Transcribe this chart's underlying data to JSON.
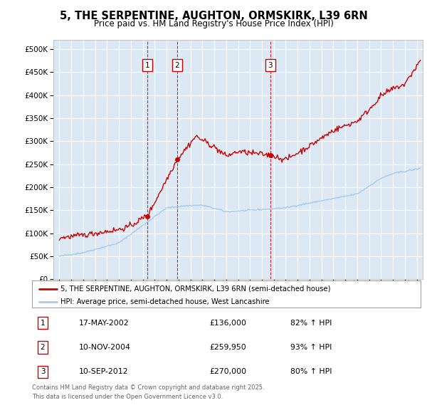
{
  "title_line1": "5, THE SERPENTINE, AUGHTON, ORMSKIRK, L39 6RN",
  "title_line2": "Price paid vs. HM Land Registry's House Price Index (HPI)",
  "plot_bg_color": "#dce9f5",
  "grid_color": "#ffffff",
  "red_line_color": "#cc0000",
  "blue_line_color": "#aac8e8",
  "hpi_label": "HPI: Average price, semi-detached house, West Lancashire",
  "property_label": "5, THE SERPENTINE, AUGHTON, ORMSKIRK, L39 6RN (semi-detached house)",
  "sale_labels": [
    "1",
    "2",
    "3"
  ],
  "sale_pct": [
    "82% ↑ HPI",
    "93% ↑ HPI",
    "80% ↑ HPI"
  ],
  "sale_display_dates": [
    "17-MAY-2002",
    "10-NOV-2004",
    "10-SEP-2012"
  ],
  "sale_price_display": [
    "£136,000",
    "£259,950",
    "£270,000"
  ],
  "sale_year_vals": [
    2002.37,
    2004.87,
    2012.7
  ],
  "sale_price_vals": [
    136000,
    259950,
    270000
  ],
  "ylim": [
    0,
    520000
  ],
  "ytick_vals": [
    0,
    50000,
    100000,
    150000,
    200000,
    250000,
    300000,
    350000,
    400000,
    450000,
    500000
  ],
  "ytick_labels": [
    "£0",
    "£50K",
    "£100K",
    "£150K",
    "£200K",
    "£250K",
    "£300K",
    "£350K",
    "£400K",
    "£450K",
    "£500K"
  ],
  "xlim_start": 1994.5,
  "xlim_end": 2025.5,
  "footer_line1": "Contains HM Land Registry data © Crown copyright and database right 2025.",
  "footer_line2": "This data is licensed under the Open Government Licence v3.0."
}
